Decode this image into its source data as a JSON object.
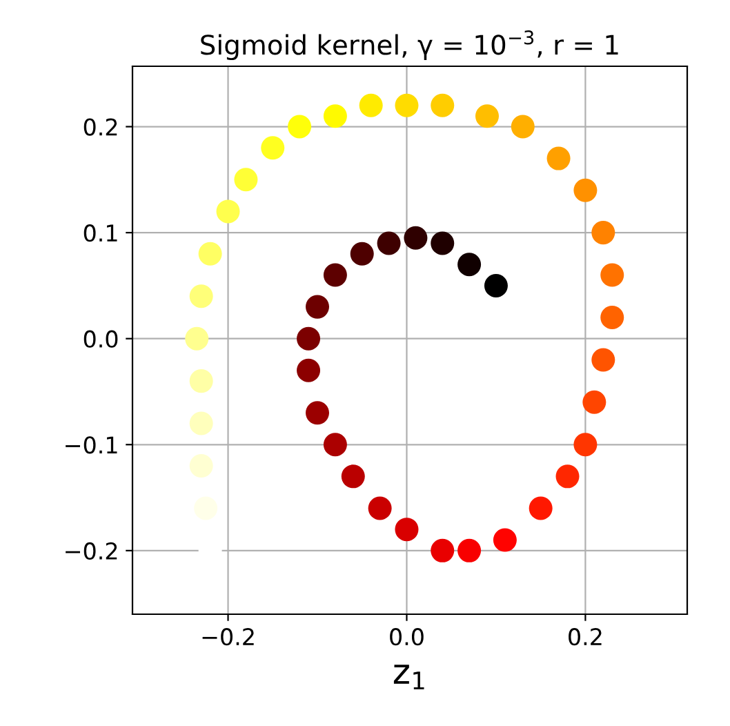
{
  "chart_data": {
    "type": "scatter",
    "title": "Sigmoid kernel, γ = 10$^{−3}$, r = 1",
    "xlabel": "z$_{1}$",
    "x": [
      0.1,
      0.07,
      0.04,
      0.01,
      -0.02,
      -0.05,
      -0.08,
      -0.1,
      -0.11,
      -0.11,
      -0.1,
      -0.08,
      -0.06,
      -0.03,
      0.0,
      0.04,
      0.07,
      0.11,
      0.15,
      0.18,
      0.2,
      0.21,
      0.22,
      0.23,
      0.23,
      0.22,
      0.2,
      0.17,
      0.13,
      0.09,
      0.04,
      0.0,
      -0.04,
      -0.08,
      -0.12,
      -0.15,
      -0.18,
      -0.2,
      -0.22,
      -0.23,
      -0.235,
      -0.23,
      -0.23,
      -0.23,
      -0.225,
      -0.22
    ],
    "values": [
      0.05,
      0.07,
      0.09,
      0.095,
      0.09,
      0.08,
      0.06,
      0.03,
      0.0,
      -0.03,
      -0.07,
      -0.1,
      -0.13,
      -0.16,
      -0.18,
      -0.2,
      -0.2,
      -0.19,
      -0.16,
      -0.13,
      -0.1,
      -0.06,
      -0.02,
      0.02,
      0.06,
      0.1,
      0.14,
      0.17,
      0.2,
      0.21,
      0.22,
      0.22,
      0.22,
      0.21,
      0.2,
      0.18,
      0.15,
      0.12,
      0.08,
      0.04,
      0.0,
      -0.04,
      -0.08,
      -0.12,
      -0.16,
      -0.2
    ],
    "colors": [
      "#000000",
      "#100000",
      "#1f0000",
      "#2f0000",
      "#3e0000",
      "#4e0000",
      "#5d0000",
      "#6d0000",
      "#7c0000",
      "#8c0000",
      "#9b0000",
      "#ab0000",
      "#ba0000",
      "#ca0000",
      "#d90000",
      "#e90000",
      "#f80000",
      "#ff0300",
      "#ff1800",
      "#ff2700",
      "#ff3600",
      "#ff4500",
      "#ff5400",
      "#ff6300",
      "#ff7200",
      "#ff8200",
      "#ff9100",
      "#ffa000",
      "#ffaf00",
      "#ffbe00",
      "#ffcd00",
      "#ffdc00",
      "#ffeb00",
      "#fffa00",
      "#ffff0a",
      "#ffff20",
      "#ffff36",
      "#ffff4d",
      "#ffff63",
      "#ffff79",
      "#ffff8f",
      "#ffffa6",
      "#ffffbc",
      "#ffffd2",
      "#ffffe9",
      "#ffffff"
    ],
    "xlim": [
      -0.307,
      0.314
    ],
    "ylim": [
      -0.26,
      0.257
    ],
    "xticks": [
      {
        "value": -0.2,
        "label": "−0.2"
      },
      {
        "value": 0,
        "label": "0.0"
      },
      0.2
    ],
    "yticks": [
      {
        "value": -0.2,
        "label": "−0.2"
      },
      {
        "value": -0.1,
        "label": "−0.1"
      },
      {
        "value": 0,
        "label": "0.0"
      },
      0.1,
      0.2
    ],
    "grid": true,
    "marker": "circle"
  }
}
